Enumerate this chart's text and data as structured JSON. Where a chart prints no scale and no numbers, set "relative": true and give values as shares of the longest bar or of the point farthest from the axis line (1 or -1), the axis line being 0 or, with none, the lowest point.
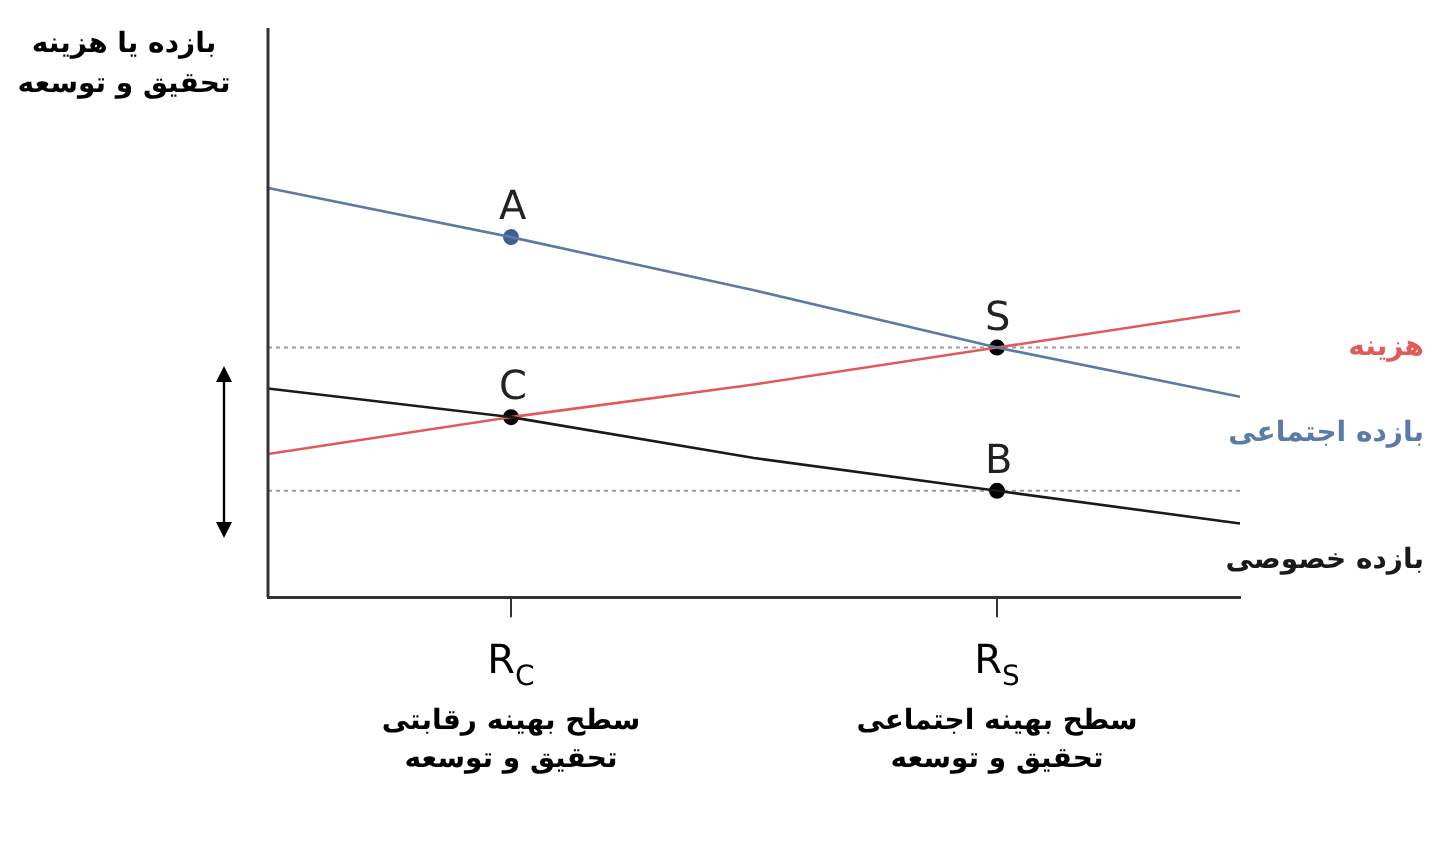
{
  "chart_data": {
    "type": "line",
    "relative": true,
    "ylabel": "بازده یا هزینه تحقیق و توسعه",
    "categories": [
      null,
      "R$_{C}$",
      null,
      "R$_{S}$",
      null
    ],
    "series": [
      {
        "name": "بازده اجتماعی",
        "color": "#5b7aa6",
        "values": [
          1,
          0.88,
          0.75,
          0.61,
          0.49
        ]
      },
      {
        "name": "بازده خصوصی",
        "color": "#1a1a1a",
        "values": [
          0.51,
          0.44,
          0.34,
          0.26,
          0.18
        ]
      },
      {
        "name": "هزینه",
        "color": "#e05a5a",
        "values": [
          0.35,
          0.44,
          0.52,
          0.61,
          0.7
        ]
      },
      {
        "type": "scatter",
        "marker": "circle",
        "x": [
          "R$_{C}$",
          "R$_{C}$",
          "R$_{S}$",
          "R$_{S}$"
        ],
        "values": [
          0.88,
          0.44,
          0.61,
          0.26
        ],
        "colors": [
          "#3d5f8f",
          "#000000",
          "#000000",
          "#000000"
        ]
      }
    ],
    "marker": "none",
    "line_style": "solid",
    "legend": false,
    "grid": false,
    "ref_lines": [
      {
        "axis": "y",
        "value": 0.61,
        "color": "#999999",
        "line_style": "dotted"
      },
      {
        "axis": "y",
        "value": 0.26,
        "color": "#999999",
        "line_style": "dotted"
      }
    ],
    "annotations": [
      {
        "text": "A",
        "x": "R$_{C}$",
        "y": 0.88
      },
      {
        "text": "C",
        "x": "R$_{C}$",
        "y": 0.44
      },
      {
        "text": "S",
        "x": "R$_{S}$",
        "y": 0.61
      },
      {
        "text": "B",
        "x": "R$_{S}$",
        "y": 0.26
      },
      "سطح بهینه رقابتی تحقیق و توسعه",
      "سطح بهینه اجتماعی تحقیق و توسعه"
    ]
  }
}
